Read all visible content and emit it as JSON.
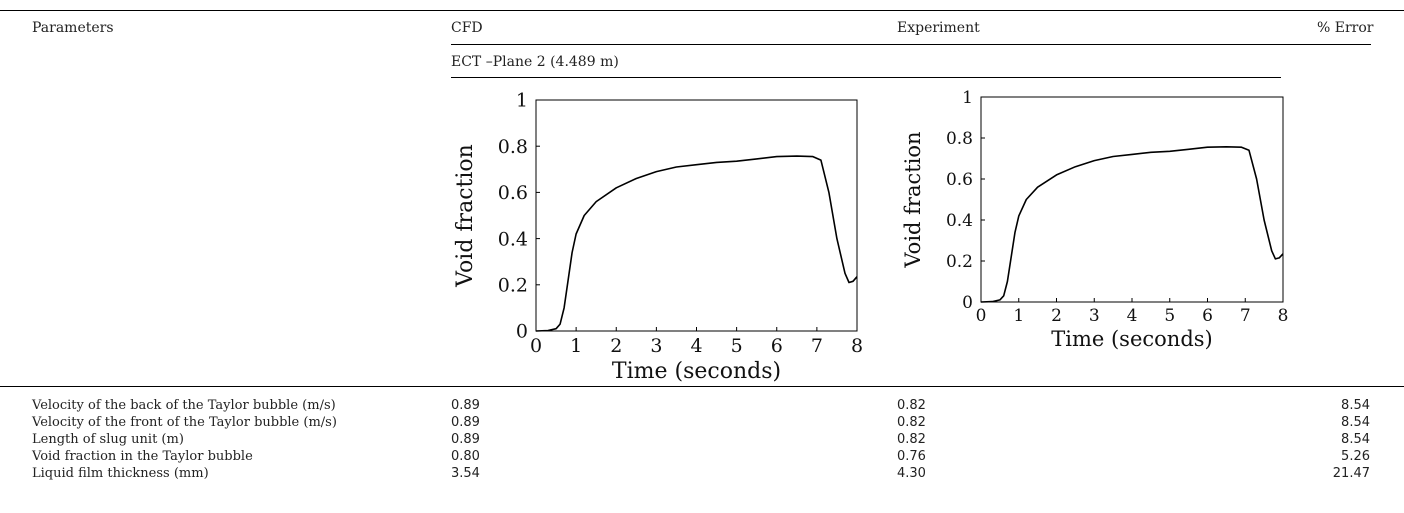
{
  "table": {
    "headers": {
      "parameters": "Parameters",
      "cfd": "CFD",
      "experiment": "Experiment",
      "error": "% Error"
    },
    "subheader": "ECT –Plane 2 (4.489 m)",
    "rows": [
      {
        "parameter": "Velocity of the back of the Taylor bubble (m/s)",
        "cfd": "0.89",
        "experiment": "0.82",
        "error": "8.54"
      },
      {
        "parameter": "Velocity of the front of the Taylor bubble (m/s)",
        "cfd": "0.89",
        "experiment": "0.82",
        "error": "8.54"
      },
      {
        "parameter": "Length of slug unit (m)",
        "cfd": "0.89",
        "experiment": "0.82",
        "error": "8.54"
      },
      {
        "parameter": "Void fraction in the Taylor bubble",
        "cfd": "0.80",
        "experiment": "0.76",
        "error": "5.26"
      },
      {
        "parameter": "Liquid film thickness (mm)",
        "cfd": "3.54",
        "experiment": "4.30",
        "error": "21.47"
      }
    ]
  },
  "chart_data": [
    {
      "type": "line",
      "xlabel": "Time (seconds)",
      "ylabel": "Void fraction",
      "xlim": [
        0,
        8
      ],
      "ylim": [
        0,
        1
      ],
      "xticks": [
        "0",
        "1",
        "2",
        "3",
        "4",
        "5",
        "6",
        "7",
        "8"
      ],
      "yticks": [
        "0",
        "0.2",
        "0.4",
        "0.6",
        "0.8",
        "1"
      ],
      "series": [
        {
          "x": [
            0,
            0.3,
            0.5,
            0.6,
            0.7,
            0.8,
            0.9,
            1.0,
            1.2,
            1.5,
            2,
            2.5,
            3,
            3.5,
            4,
            4.5,
            5,
            5.5,
            6,
            6.5,
            6.9,
            7.1,
            7.3,
            7.5,
            7.7,
            7.8,
            7.9,
            8.0
          ],
          "y": [
            0,
            0.002,
            0.01,
            0.03,
            0.1,
            0.22,
            0.34,
            0.42,
            0.5,
            0.56,
            0.62,
            0.66,
            0.69,
            0.71,
            0.72,
            0.73,
            0.735,
            0.745,
            0.755,
            0.757,
            0.755,
            0.74,
            0.6,
            0.4,
            0.25,
            0.21,
            0.215,
            0.235
          ]
        }
      ]
    },
    {
      "type": "line",
      "xlabel": "Time (seconds)",
      "ylabel": "Void fraction",
      "xlim": [
        0,
        8
      ],
      "ylim": [
        0,
        1
      ],
      "xticks": [
        "0",
        "1",
        "2",
        "3",
        "4",
        "5",
        "6",
        "7",
        "8"
      ],
      "yticks": [
        "0",
        "0.2",
        "0.4",
        "0.6",
        "0.8",
        "1"
      ],
      "series": [
        {
          "x": [
            0,
            0.3,
            0.5,
            0.6,
            0.7,
            0.8,
            0.9,
            1.0,
            1.2,
            1.5,
            2,
            2.5,
            3,
            3.5,
            4,
            4.5,
            5,
            5.5,
            6,
            6.5,
            6.9,
            7.1,
            7.3,
            7.5,
            7.7,
            7.8,
            7.9,
            8.0
          ],
          "y": [
            0,
            0.002,
            0.01,
            0.03,
            0.1,
            0.22,
            0.34,
            0.42,
            0.5,
            0.56,
            0.62,
            0.66,
            0.69,
            0.71,
            0.72,
            0.73,
            0.735,
            0.745,
            0.755,
            0.757,
            0.755,
            0.74,
            0.6,
            0.4,
            0.25,
            0.21,
            0.215,
            0.235
          ]
        }
      ]
    }
  ]
}
